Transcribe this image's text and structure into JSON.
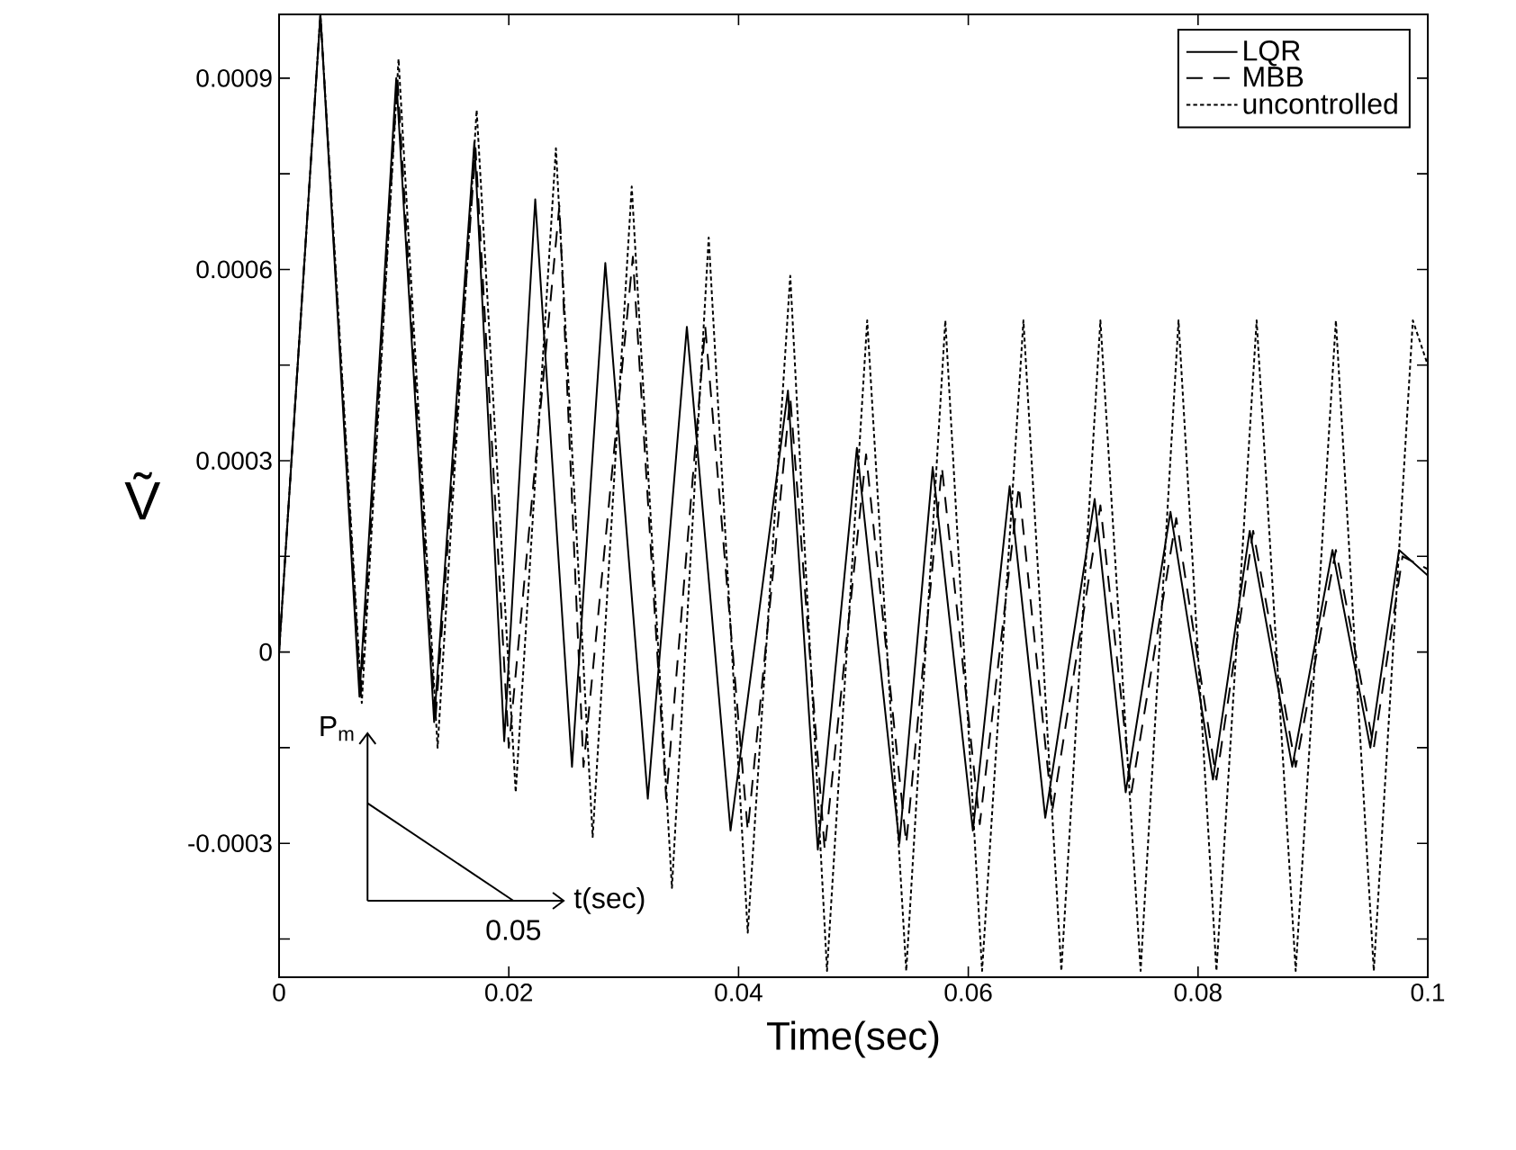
{
  "chart_data": {
    "type": "line",
    "xlabel": "Time(sec)",
    "ylabel": "Ṽ",
    "xlim": [
      0,
      0.1
    ],
    "ylim": [
      -0.00051,
      0.001
    ],
    "xticks": [
      0,
      0.02,
      0.04,
      0.06,
      0.08,
      0.1
    ],
    "yticks": [
      {
        "value": -0.00045,
        "label": null
      },
      -0.0003,
      {
        "value": -0.00015,
        "label": null
      },
      0,
      {
        "value": 0.00015,
        "label": null
      },
      0.0003,
      {
        "value": 0.00045,
        "label": null
      },
      0.0006,
      {
        "value": 0.00075,
        "label": null
      },
      0.0009
    ],
    "grid": false,
    "legend": "top right",
    "annotations": [
      "P$_{m}$",
      "t(sec)",
      "0.05"
    ],
    "series": [
      {
        "name": "LQR",
        "color": "#000000",
        "line_style": "solid",
        "x": [
          0,
          0.0036,
          0.007,
          0.0102,
          0.0135,
          0.017,
          0.0196,
          0.0223,
          0.0255,
          0.0284,
          0.0321,
          0.0355,
          0.0393,
          0.0443,
          0.0469,
          0.0503,
          0.054,
          0.0569,
          0.0604,
          0.0636,
          0.0667,
          0.071,
          0.0737,
          0.0776,
          0.0813,
          0.0845,
          0.0882,
          0.0917,
          0.095,
          0.0975,
          0.1
        ],
        "values": [
          0,
          0.001,
          -7e-05,
          0.0009,
          -0.00011,
          0.0008,
          -0.00014,
          0.00071,
          -0.00018,
          0.00061,
          -0.00023,
          0.00051,
          -0.00028,
          0.00041,
          -0.00031,
          0.00032,
          -0.0003,
          0.00029,
          -0.00028,
          0.00026,
          -0.00026,
          0.00024,
          -0.00022,
          0.00022,
          -0.0002,
          0.00019,
          -0.00018,
          0.00016,
          -0.00015,
          0.00016,
          0.00012
        ]
      },
      {
        "name": "MBB",
        "color": "#000000",
        "line_style": "dashed",
        "x": [
          0,
          0.0036,
          0.0071,
          0.0103,
          0.0136,
          0.0171,
          0.02,
          0.0244,
          0.0265,
          0.0308,
          0.0337,
          0.0371,
          0.0408,
          0.0445,
          0.0475,
          0.0511,
          0.0546,
          0.0577,
          0.061,
          0.0644,
          0.0673,
          0.0715,
          0.0742,
          0.0781,
          0.0816,
          0.0848,
          0.0885,
          0.092,
          0.0953,
          0.0978,
          0.1
        ],
        "values": [
          0,
          0.001,
          -7e-05,
          0.0009,
          -0.00011,
          0.00079,
          -0.00015,
          0.0007,
          -0.00018,
          0.00062,
          -0.00023,
          0.00051,
          -0.00028,
          0.0004,
          -0.00031,
          0.00031,
          -0.0003,
          0.00029,
          -0.00027,
          0.00026,
          -0.00025,
          0.00023,
          -0.00022,
          0.00021,
          -0.0002,
          0.00019,
          -0.00018,
          0.00016,
          -0.00015,
          0.00015,
          0.00013
        ]
      },
      {
        "name": "uncontrolled",
        "color": "#000000",
        "line_style": "dotted",
        "x": [
          0,
          0.0036,
          0.0072,
          0.0104,
          0.0138,
          0.0172,
          0.0206,
          0.0241,
          0.0273,
          0.0307,
          0.0342,
          0.0374,
          0.0408,
          0.0445,
          0.0477,
          0.0512,
          0.0546,
          0.058,
          0.0612,
          0.0648,
          0.0681,
          0.0715,
          0.075,
          0.0783,
          0.0816,
          0.0851,
          0.0885,
          0.092,
          0.0953,
          0.0987,
          0.1
        ],
        "values": [
          0,
          0.001,
          -8e-05,
          0.00093,
          -0.00015,
          0.00085,
          -0.00022,
          0.00079,
          -0.00029,
          0.00073,
          -0.00037,
          0.00065,
          -0.00044,
          0.00059,
          -0.0005,
          0.00052,
          -0.0005,
          0.00052,
          -0.0005,
          0.00052,
          -0.0005,
          0.00052,
          -0.0005,
          0.00052,
          -0.0005,
          0.00052,
          -0.0005,
          0.00052,
          -0.0005,
          0.00052,
          0.00045
        ]
      }
    ]
  }
}
